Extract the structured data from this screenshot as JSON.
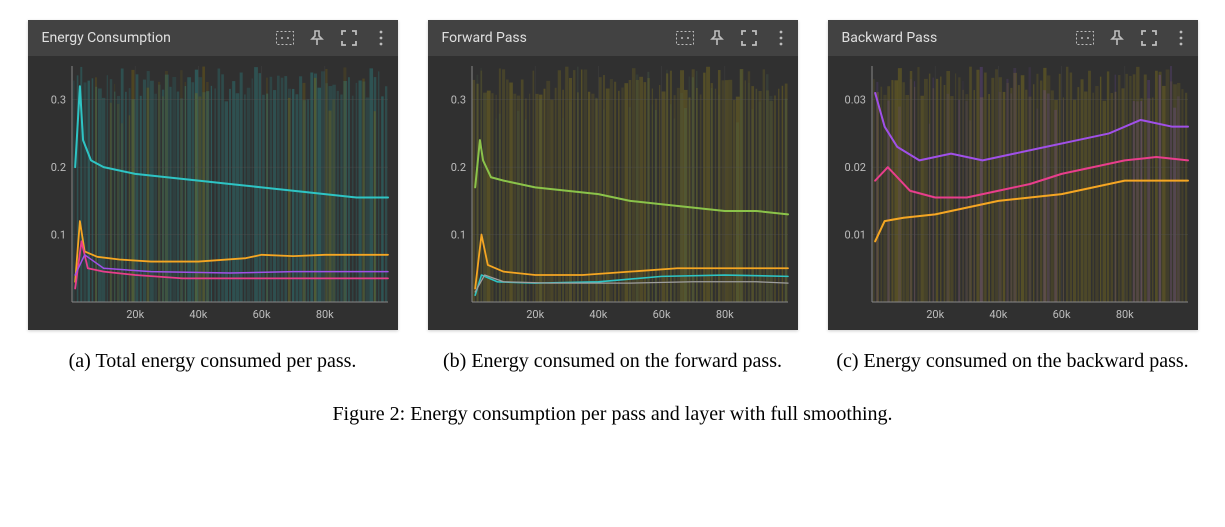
{
  "figure_caption": "Figure 2: Energy consumption per pass and layer with full smoothing.",
  "panels": [
    {
      "title": "Energy Consumption",
      "subcaption": "(a) Total energy consumed per pass.",
      "chart": {
        "type": "line",
        "background_color": "#303030",
        "plot_bg": "#303030",
        "grid_color": "#555555",
        "axis_color": "#888888",
        "label_color": "#bdbdbd",
        "label_fontsize": 11,
        "xlim": [
          0,
          100000
        ],
        "ylim": [
          0,
          0.35
        ],
        "xtick_step": 20000,
        "xtick_labels": [
          "20k",
          "40k",
          "60k",
          "80k"
        ],
        "ytick_positions": [
          0.1,
          0.2,
          0.3
        ],
        "ytick_labels": [
          "0.1",
          "0.2",
          "0.3"
        ],
        "noise_bars": {
          "count": 85,
          "color": "#2b9494",
          "opacity": 0.32,
          "accent": "#9c7c00",
          "accent_opacity": 0.25
        },
        "series": [
          {
            "color": "#2ec4c4",
            "width": 2.0,
            "points": [
              [
                1000,
                0.2
              ],
              [
                2500,
                0.32
              ],
              [
                3500,
                0.24
              ],
              [
                6000,
                0.21
              ],
              [
                10000,
                0.2
              ],
              [
                15000,
                0.195
              ],
              [
                20000,
                0.19
              ],
              [
                30000,
                0.185
              ],
              [
                40000,
                0.18
              ],
              [
                50000,
                0.175
              ],
              [
                60000,
                0.17
              ],
              [
                70000,
                0.165
              ],
              [
                80000,
                0.16
              ],
              [
                90000,
                0.155
              ],
              [
                100000,
                0.155
              ]
            ]
          },
          {
            "color": "#f5a623",
            "width": 1.8,
            "points": [
              [
                1000,
                0.03
              ],
              [
                2500,
                0.12
              ],
              [
                4000,
                0.075
              ],
              [
                8000,
                0.067
              ],
              [
                15000,
                0.063
              ],
              [
                25000,
                0.06
              ],
              [
                40000,
                0.06
              ],
              [
                55000,
                0.065
              ],
              [
                60000,
                0.07
              ],
              [
                70000,
                0.068
              ],
              [
                80000,
                0.07
              ],
              [
                90000,
                0.07
              ],
              [
                100000,
                0.07
              ]
            ]
          },
          {
            "color": "#e83e8c",
            "width": 1.8,
            "points": [
              [
                1000,
                0.02
              ],
              [
                3000,
                0.09
              ],
              [
                5000,
                0.05
              ],
              [
                10000,
                0.045
              ],
              [
                20000,
                0.04
              ],
              [
                35000,
                0.035
              ],
              [
                50000,
                0.035
              ],
              [
                65000,
                0.035
              ],
              [
                80000,
                0.035
              ],
              [
                100000,
                0.035
              ]
            ]
          },
          {
            "color": "#a050e8",
            "width": 1.5,
            "points": [
              [
                1000,
                0.04
              ],
              [
                4000,
                0.07
              ],
              [
                10000,
                0.05
              ],
              [
                25000,
                0.045
              ],
              [
                50000,
                0.043
              ],
              [
                70000,
                0.045
              ],
              [
                90000,
                0.045
              ],
              [
                100000,
                0.045
              ]
            ]
          }
        ]
      }
    },
    {
      "title": "Forward Pass",
      "subcaption": "(b) Energy consumed on the forward pass.",
      "chart": {
        "type": "line",
        "background_color": "#303030",
        "plot_bg": "#303030",
        "grid_color": "#555555",
        "axis_color": "#888888",
        "label_color": "#bdbdbd",
        "label_fontsize": 11,
        "xlim": [
          0,
          100000
        ],
        "ylim": [
          0,
          0.35
        ],
        "xtick_step": 20000,
        "xtick_labels": [
          "20k",
          "40k",
          "60k",
          "80k"
        ],
        "ytick_positions": [
          0.1,
          0.2,
          0.3
        ],
        "ytick_labels": [
          "0.1",
          "0.2",
          "0.3"
        ],
        "noise_bars": {
          "count": 85,
          "color": "#8a7a1a",
          "opacity": 0.35,
          "accent": "#557755",
          "accent_opacity": 0.22
        },
        "series": [
          {
            "color": "#8bc34a",
            "width": 2.0,
            "points": [
              [
                1000,
                0.17
              ],
              [
                2500,
                0.24
              ],
              [
                3500,
                0.21
              ],
              [
                6000,
                0.185
              ],
              [
                10000,
                0.18
              ],
              [
                15000,
                0.175
              ],
              [
                20000,
                0.17
              ],
              [
                30000,
                0.165
              ],
              [
                40000,
                0.16
              ],
              [
                50000,
                0.15
              ],
              [
                60000,
                0.145
              ],
              [
                70000,
                0.14
              ],
              [
                80000,
                0.135
              ],
              [
                90000,
                0.135
              ],
              [
                100000,
                0.13
              ]
            ]
          },
          {
            "color": "#f5a623",
            "width": 1.8,
            "points": [
              [
                1000,
                0.02
              ],
              [
                3000,
                0.1
              ],
              [
                5000,
                0.055
              ],
              [
                10000,
                0.045
              ],
              [
                20000,
                0.04
              ],
              [
                35000,
                0.04
              ],
              [
                50000,
                0.045
              ],
              [
                65000,
                0.05
              ],
              [
                80000,
                0.05
              ],
              [
                100000,
                0.05
              ]
            ]
          },
          {
            "color": "#2ec4c4",
            "width": 1.6,
            "points": [
              [
                1000,
                0.01
              ],
              [
                3000,
                0.04
              ],
              [
                8000,
                0.03
              ],
              [
                20000,
                0.028
              ],
              [
                40000,
                0.03
              ],
              [
                60000,
                0.038
              ],
              [
                80000,
                0.04
              ],
              [
                100000,
                0.038
              ]
            ]
          },
          {
            "color": "#9e9e9e",
            "width": 1.3,
            "points": [
              [
                1000,
                0.015
              ],
              [
                4000,
                0.04
              ],
              [
                10000,
                0.03
              ],
              [
                25000,
                0.028
              ],
              [
                50000,
                0.028
              ],
              [
                70000,
                0.03
              ],
              [
                90000,
                0.03
              ],
              [
                100000,
                0.028
              ]
            ]
          }
        ]
      }
    },
    {
      "title": "Backward Pass",
      "subcaption": "(c) Energy consumed on the backward pass.",
      "chart": {
        "type": "line",
        "background_color": "#303030",
        "plot_bg": "#303030",
        "grid_color": "#555555",
        "axis_color": "#888888",
        "label_color": "#bdbdbd",
        "label_fontsize": 11,
        "xlim": [
          0,
          100000
        ],
        "ylim": [
          0,
          0.035
        ],
        "xtick_step": 20000,
        "xtick_labels": [
          "20k",
          "40k",
          "60k",
          "80k"
        ],
        "ytick_positions": [
          0.01,
          0.02,
          0.03
        ],
        "ytick_labels": [
          "0.01",
          "0.02",
          "0.03"
        ],
        "noise_bars": {
          "count": 85,
          "color": "#8a7a1a",
          "opacity": 0.35,
          "accent": "#7a4fb0",
          "accent_opacity": 0.28
        },
        "series": [
          {
            "color": "#a050e8",
            "width": 2.0,
            "points": [
              [
                1000,
                0.031
              ],
              [
                4000,
                0.026
              ],
              [
                8000,
                0.023
              ],
              [
                15000,
                0.021
              ],
              [
                25000,
                0.022
              ],
              [
                35000,
                0.021
              ],
              [
                45000,
                0.022
              ],
              [
                55000,
                0.023
              ],
              [
                65000,
                0.024
              ],
              [
                75000,
                0.025
              ],
              [
                85000,
                0.027
              ],
              [
                95000,
                0.026
              ],
              [
                100000,
                0.026
              ]
            ]
          },
          {
            "color": "#e83e8c",
            "width": 2.0,
            "points": [
              [
                1000,
                0.018
              ],
              [
                5000,
                0.02
              ],
              [
                12000,
                0.0165
              ],
              [
                20000,
                0.0155
              ],
              [
                30000,
                0.0155
              ],
              [
                40000,
                0.0165
              ],
              [
                50000,
                0.0175
              ],
              [
                60000,
                0.019
              ],
              [
                70000,
                0.02
              ],
              [
                80000,
                0.021
              ],
              [
                90000,
                0.0215
              ],
              [
                100000,
                0.021
              ]
            ]
          },
          {
            "color": "#f5a623",
            "width": 2.0,
            "points": [
              [
                1000,
                0.009
              ],
              [
                4000,
                0.012
              ],
              [
                10000,
                0.0125
              ],
              [
                20000,
                0.013
              ],
              [
                30000,
                0.014
              ],
              [
                40000,
                0.015
              ],
              [
                50000,
                0.0155
              ],
              [
                60000,
                0.016
              ],
              [
                70000,
                0.017
              ],
              [
                80000,
                0.018
              ],
              [
                90000,
                0.018
              ],
              [
                100000,
                0.018
              ]
            ]
          }
        ]
      }
    }
  ],
  "icons": {
    "fit": "fit-icon",
    "pin": "pin-icon",
    "fullscreen": "fullscreen-icon",
    "more": "more-icon"
  }
}
